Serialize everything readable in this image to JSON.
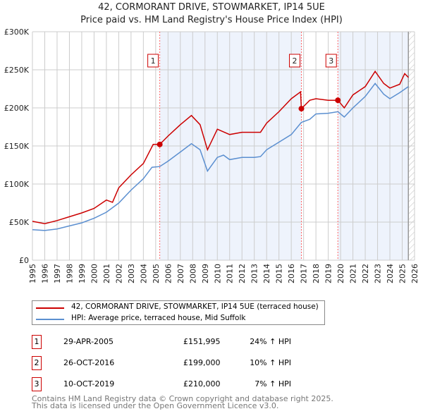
{
  "title": "42, CORMORANT DRIVE, STOWMARKET, IP14 5UE",
  "subtitle": "Price paid vs. HM Land Registry's House Price Index (HPI)",
  "chart_data": {
    "type": "line",
    "title": "42, CORMORANT DRIVE, STOWMARKET, IP14 5UE",
    "ylim": [
      0,
      300000
    ],
    "xlim": [
      1995,
      2026
    ],
    "yticks": [
      {
        "v": 0,
        "label": "£0"
      },
      {
        "v": 50000,
        "label": "£50K"
      },
      {
        "v": 100000,
        "label": "£100K"
      },
      {
        "v": 150000,
        "label": "£150K"
      },
      {
        "v": 200000,
        "label": "£200K"
      },
      {
        "v": 250000,
        "label": "£250K"
      },
      {
        "v": 300000,
        "label": "£300K"
      }
    ],
    "xticks": [
      "1995",
      "1996",
      "1997",
      "1998",
      "1999",
      "2000",
      "2001",
      "2002",
      "2003",
      "2004",
      "2005",
      "2006",
      "2007",
      "2008",
      "2009",
      "2010",
      "2011",
      "2012",
      "2013",
      "2014",
      "2015",
      "2016",
      "2017",
      "2018",
      "2019",
      "2020",
      "2021",
      "2022",
      "2023",
      "2024",
      "2025",
      "2026"
    ],
    "grid": true,
    "shaded_ranges": [
      [
        2005.33,
        2016.82
      ],
      [
        2019.78,
        2025.5
      ]
    ],
    "hatched_from": 2025.5,
    "series": [
      {
        "name": "42, CORMORANT DRIVE, STOWMARKET, IP14 5UE (terraced house)",
        "color": "#cc0000",
        "x": [
          1995,
          1996,
          1997,
          1998,
          1999,
          2000,
          2001,
          2001.5,
          2002,
          2003,
          2004,
          2004.8,
          2005.33,
          2006,
          2007,
          2007.9,
          2008.6,
          2009.2,
          2010,
          2011,
          2012,
          2013,
          2013.5,
          2014,
          2015,
          2016,
          2016.75,
          2016.82,
          2017.5,
          2018,
          2019,
          2019.78,
          2020.3,
          2021,
          2022,
          2022.8,
          2023.5,
          2024,
          2024.8,
          2025.2,
          2025.5
        ],
        "y": [
          51000,
          48000,
          52000,
          57000,
          62000,
          68000,
          79000,
          76000,
          95000,
          112000,
          127000,
          152000,
          151995,
          163000,
          178000,
          190000,
          178000,
          145000,
          172000,
          165000,
          168000,
          168000,
          168000,
          180000,
          195000,
          212000,
          221000,
          199000,
          210000,
          212000,
          210000,
          210000,
          200000,
          217000,
          228000,
          248000,
          232000,
          226000,
          231000,
          245000,
          240000
        ]
      },
      {
        "name": "HPI: Average price, terraced house, Mid Suffolk",
        "color": "#5b8fd0",
        "x": [
          1995,
          1996,
          1997,
          1998,
          1999,
          2000,
          2001,
          2002,
          2003,
          2004,
          2004.7,
          2005.33,
          2006,
          2007,
          2007.9,
          2008.6,
          2009.2,
          2010,
          2010.5,
          2011,
          2012,
          2013,
          2013.5,
          2014,
          2015,
          2016,
          2016.82,
          2017.5,
          2018,
          2019,
          2019.78,
          2020.3,
          2021,
          2022,
          2022.8,
          2023.5,
          2024,
          2024.8,
          2025.5
        ],
        "y": [
          40000,
          39000,
          41000,
          45000,
          49000,
          55000,
          63000,
          75000,
          92000,
          107000,
          122000,
          123000,
          130000,
          142000,
          153000,
          145000,
          117000,
          135000,
          138000,
          132000,
          135000,
          135000,
          136000,
          145000,
          155000,
          165000,
          181000,
          185000,
          192000,
          193000,
          195000,
          188000,
          200000,
          215000,
          232000,
          218000,
          212000,
          220000,
          228000
        ]
      }
    ],
    "sales": [
      {
        "label": "1",
        "x": 2005.33,
        "y": 151995
      },
      {
        "label": "2",
        "x": 2016.82,
        "y": 199000
      },
      {
        "label": "3",
        "x": 2019.78,
        "y": 210000
      }
    ]
  },
  "legend": [
    {
      "label": "42, CORMORANT DRIVE, STOWMARKET, IP14 5UE (terraced house)",
      "color": "#cc0000"
    },
    {
      "label": "HPI: Average price, terraced house, Mid Suffolk",
      "color": "#5b8fd0"
    }
  ],
  "transactions": [
    {
      "num": "1",
      "date": "29-APR-2005",
      "price": "£151,995",
      "hpi": "24% ↑ HPI"
    },
    {
      "num": "2",
      "date": "26-OCT-2016",
      "price": "£199,000",
      "hpi": "10% ↑ HPI"
    },
    {
      "num": "3",
      "date": "10-OCT-2019",
      "price": "£210,000",
      "hpi": "7% ↑ HPI"
    }
  ],
  "footer": {
    "line1": "Contains HM Land Registry data © Crown copyright and database right 2025.",
    "line2": "This data is licensed under the Open Government Licence v3.0."
  }
}
